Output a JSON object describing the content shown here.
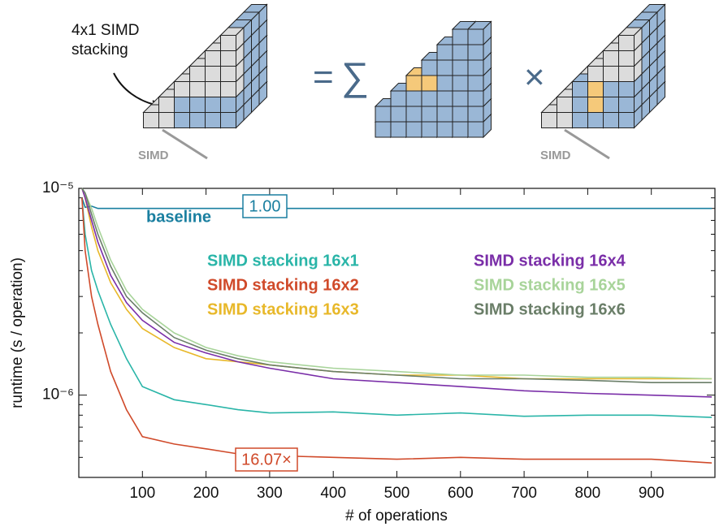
{
  "diagram": {
    "stacking_label": "4x1 SIMD stacking",
    "simd_left": "SIMD",
    "equals": "=",
    "sum": "∑",
    "times": "×",
    "simd_right": "SIMD"
  },
  "chart_data": {
    "type": "line",
    "xlabel": "# of operations",
    "ylabel": "runtime   (s / operation)",
    "log_y": true,
    "xlim": [
      0,
      1000
    ],
    "xticks": [
      100,
      200,
      300,
      400,
      500,
      600,
      700,
      800,
      900
    ],
    "ylim": [
      4e-07,
      1e-05
    ],
    "yticks": [
      {
        "value": 1e-06,
        "label": "10⁻⁶"
      },
      {
        "value": 1e-05,
        "label": "10⁻⁵"
      }
    ],
    "yminorticks": [
      5e-07,
      6e-07,
      7e-07,
      8e-07,
      9e-07,
      2e-06,
      3e-06,
      4e-06,
      5e-06,
      6e-06,
      7e-06,
      8e-06,
      9e-06
    ],
    "x": [
      5,
      10,
      20,
      30,
      50,
      75,
      100,
      150,
      200,
      250,
      300,
      400,
      500,
      600,
      700,
      800,
      900,
      995
    ],
    "series": [
      {
        "name": "baseline",
        "color": "#1a7fa0",
        "values": [
          9e-06,
          8.1e-06,
          8.2e-06,
          8e-06,
          8e-06,
          8e-06,
          8e-06,
          8e-06,
          8e-06,
          8e-06,
          8e-06,
          8e-06,
          8e-06,
          8e-06,
          8e-06,
          8e-06,
          8e-06,
          8e-06
        ]
      },
      {
        "name": "SIMD stacking 16x1",
        "color": "#2ab5a8",
        "values": [
          9e-06,
          6e-06,
          4e-06,
          3.2e-06,
          2.2e-06,
          1.5e-06,
          1.1e-06,
          9.5e-07,
          9e-07,
          8.5e-07,
          8.2e-07,
          8.3e-07,
          8e-07,
          8.2e-07,
          7.9e-07,
          8e-07,
          8e-07,
          7.8e-07
        ]
      },
      {
        "name": "SIMD stacking 16x2",
        "color": "#d04a2a",
        "values": [
          9e-06,
          5e-06,
          3e-06,
          2.2e-06,
          1.3e-06,
          8.5e-07,
          6.3e-07,
          5.8e-07,
          5.5e-07,
          5.2e-07,
          5.1e-07,
          5e-07,
          4.9e-07,
          5e-07,
          4.9e-07,
          4.9e-07,
          4.9e-07,
          4.7e-07
        ]
      },
      {
        "name": "SIMD stacking 16x3",
        "color": "#e8b82a",
        "values": [
          1e-05,
          9e-06,
          6.5e-06,
          5e-06,
          3.5e-06,
          2.6e-06,
          2.1e-06,
          1.7e-06,
          1.5e-06,
          1.45e-06,
          1.4e-06,
          1.3e-06,
          1.25e-06,
          1.25e-06,
          1.2e-06,
          1.2e-06,
          1.2e-06,
          1.2e-06
        ]
      },
      {
        "name": "SIMD stacking 16x4",
        "color": "#7a2ea8",
        "values": [
          1e-05,
          9e-06,
          7e-06,
          5.5e-06,
          3.8e-06,
          2.8e-06,
          2.3e-06,
          1.8e-06,
          1.6e-06,
          1.45e-06,
          1.35e-06,
          1.2e-06,
          1.15e-06,
          1.1e-06,
          1.05e-06,
          1.02e-06,
          1e-06,
          9.8e-07
        ]
      },
      {
        "name": "SIMD stacking 16x5",
        "color": "#a8d49a",
        "values": [
          1e-05,
          9.5e-06,
          8e-06,
          6.5e-06,
          4.5e-06,
          3.2e-06,
          2.6e-06,
          2e-06,
          1.7e-06,
          1.55e-06,
          1.45e-06,
          1.35e-06,
          1.3e-06,
          1.25e-06,
          1.25e-06,
          1.22e-06,
          1.22e-06,
          1.2e-06
        ]
      },
      {
        "name": "SIMD stacking 16x6",
        "color": "#6a7e68",
        "values": [
          1e-05,
          9.5e-06,
          7.5e-06,
          6e-06,
          4.2e-06,
          3e-06,
          2.5e-06,
          1.9e-06,
          1.65e-06,
          1.5e-06,
          1.4e-06,
          1.3e-06,
          1.25e-06,
          1.2e-06,
          1.2e-06,
          1.18e-06,
          1.15e-06,
          1.15e-06
        ]
      }
    ],
    "annotations": [
      "1.00",
      "16.07×"
    ]
  }
}
